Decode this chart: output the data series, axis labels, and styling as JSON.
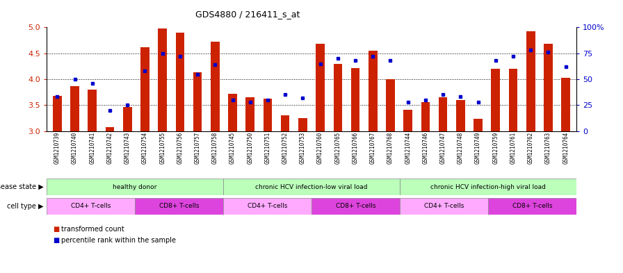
{
  "title": "GDS4880 / 216411_s_at",
  "samples": [
    "GSM1210739",
    "GSM1210740",
    "GSM1210741",
    "GSM1210742",
    "GSM1210743",
    "GSM1210754",
    "GSM1210755",
    "GSM1210756",
    "GSM1210757",
    "GSM1210758",
    "GSM1210745",
    "GSM1210750",
    "GSM1210751",
    "GSM1210752",
    "GSM1210753",
    "GSM1210760",
    "GSM1210765",
    "GSM1210766",
    "GSM1210767",
    "GSM1210768",
    "GSM1210744",
    "GSM1210746",
    "GSM1210747",
    "GSM1210748",
    "GSM1210749",
    "GSM1210759",
    "GSM1210761",
    "GSM1210762",
    "GSM1210763",
    "GSM1210764"
  ],
  "transformed_count": [
    3.68,
    3.86,
    3.8,
    3.08,
    3.47,
    4.61,
    4.98,
    4.9,
    4.14,
    4.72,
    3.72,
    3.65,
    3.63,
    3.3,
    3.25,
    4.68,
    4.3,
    4.22,
    4.55,
    4.0,
    3.41,
    3.56,
    3.65,
    3.6,
    3.23,
    4.2,
    4.2,
    4.93,
    4.68,
    4.02
  ],
  "percentile_rank": [
    33,
    50,
    46,
    20,
    25,
    58,
    75,
    72,
    55,
    64,
    30,
    28,
    30,
    35,
    32,
    65,
    70,
    68,
    72,
    68,
    28,
    30,
    35,
    33,
    28,
    68,
    72,
    78,
    76,
    62
  ],
  "ylim": [
    3.0,
    5.0
  ],
  "yticks": [
    3.0,
    3.5,
    4.0,
    4.5,
    5.0
  ],
  "right_yticks": [
    0,
    25,
    50,
    75,
    100
  ],
  "bar_color": "#cc2200",
  "dot_color": "#0000cc",
  "ds_groups": [
    {
      "label": "healthy donor",
      "start": 0,
      "end": 10,
      "color": "#bbffbb"
    },
    {
      "label": "chronic HCV infection-low viral load",
      "start": 10,
      "end": 20,
      "color": "#bbffbb"
    },
    {
      "label": "chronic HCV infection-high viral load",
      "start": 20,
      "end": 30,
      "color": "#bbffbb"
    }
  ],
  "ct_groups": [
    {
      "label": "CD4+ T-cells",
      "start": 0,
      "end": 5,
      "color": "#ffaaff"
    },
    {
      "label": "CD8+ T-cells",
      "start": 5,
      "end": 10,
      "color": "#dd44dd"
    },
    {
      "label": "CD4+ T-cells",
      "start": 10,
      "end": 15,
      "color": "#ffaaff"
    },
    {
      "label": "CD8+ T-cells",
      "start": 15,
      "end": 20,
      "color": "#dd44dd"
    },
    {
      "label": "CD4+ T-cells",
      "start": 20,
      "end": 25,
      "color": "#ffaaff"
    },
    {
      "label": "CD8+ T-cells",
      "start": 25,
      "end": 30,
      "color": "#dd44dd"
    }
  ],
  "disease_label": "disease state",
  "cell_type_label": "cell type",
  "bar_width": 0.5
}
